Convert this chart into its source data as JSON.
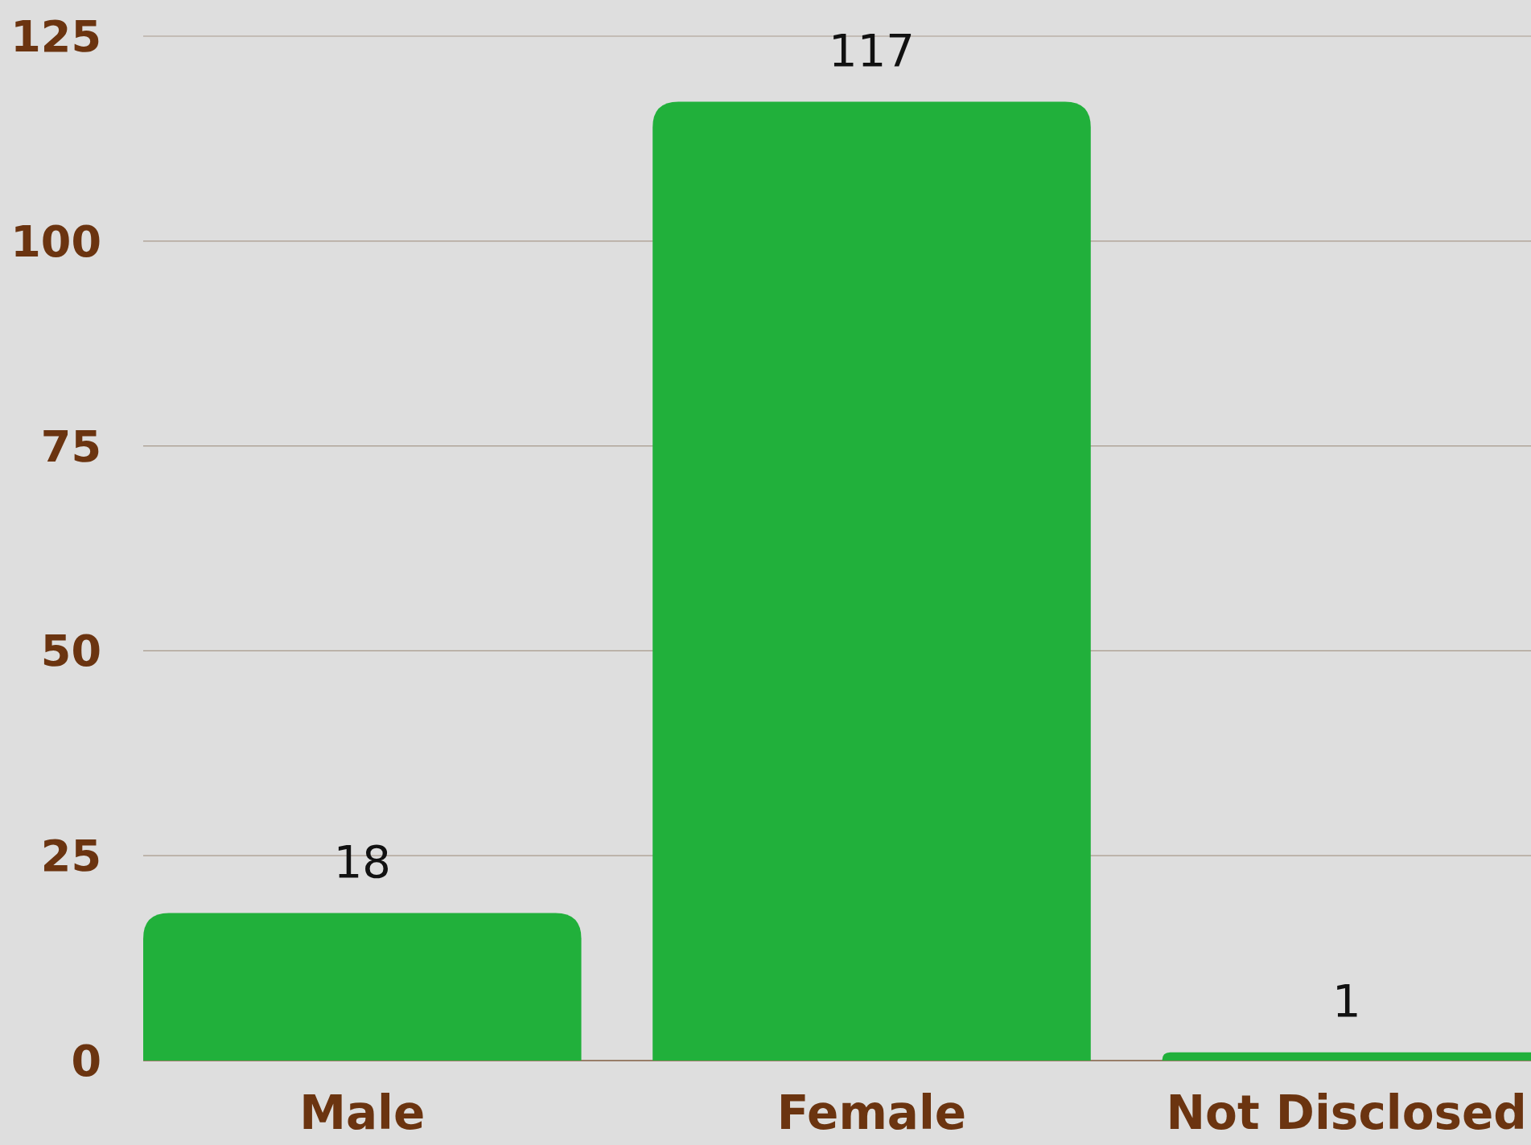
{
  "chart_data": {
    "type": "bar",
    "categories": [
      "Male",
      "Female",
      "Not Disclosed"
    ],
    "values": [
      18,
      117,
      1
    ],
    "color": "#21b03b",
    "ylim": [
      0,
      125
    ],
    "yticks": [
      0,
      25,
      50,
      75,
      100,
      125
    ],
    "grid": "y",
    "data_labels": true
  }
}
